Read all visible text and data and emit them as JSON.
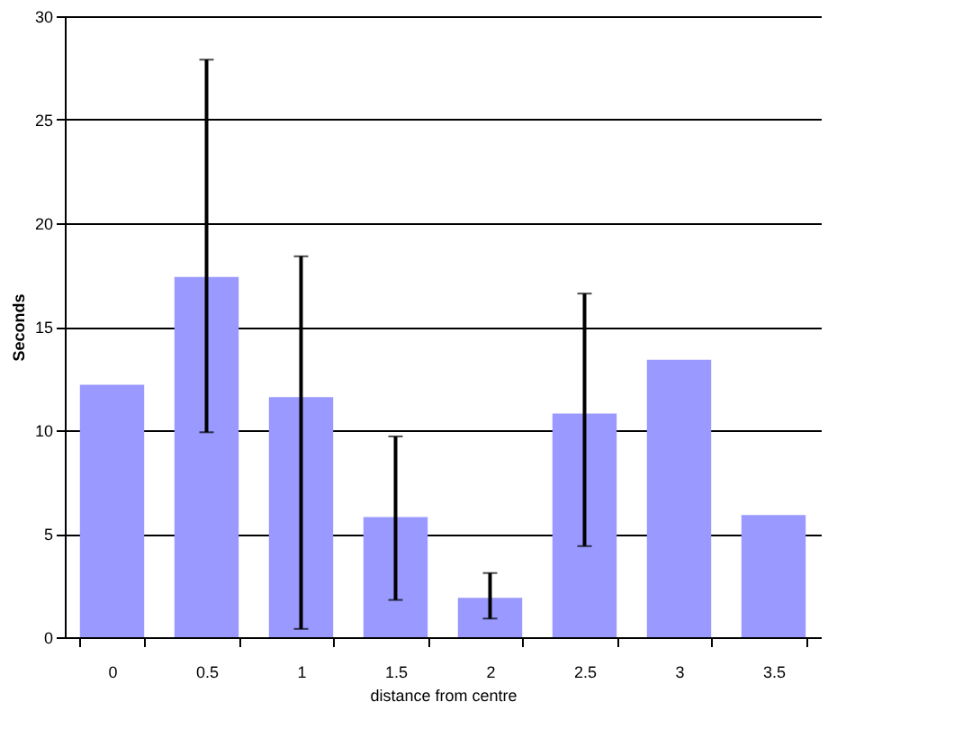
{
  "chart_data": {
    "type": "bar",
    "xlabel": "distance from centre",
    "ylabel": "Seconds",
    "categories": [
      "0",
      "0.5",
      "1",
      "1.5",
      "2",
      "2.5",
      "3",
      "3.5"
    ],
    "values": [
      12.2,
      17.4,
      11.6,
      5.8,
      1.9,
      10.8,
      13.4,
      5.9
    ],
    "errors": [
      null,
      [
        9.9,
        27.9
      ],
      [
        0.4,
        18.4
      ],
      [
        1.8,
        9.7
      ],
      [
        0.9,
        3.1
      ],
      [
        4.4,
        16.6
      ],
      null,
      null
    ],
    "color": "#9999ff",
    "ylim": [
      0,
      30
    ],
    "yticks": [
      0,
      5,
      10,
      15,
      20,
      25,
      30
    ],
    "grid": "y"
  }
}
